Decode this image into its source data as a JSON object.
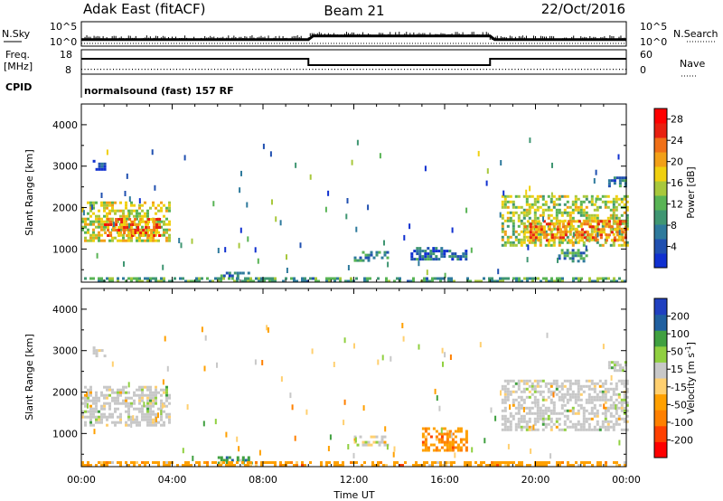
{
  "header": {
    "radar_title": "Adak East (fitACF)",
    "beam": "Beam 21",
    "date": "22/Oct/2016"
  },
  "top_panels": {
    "nsky_label": "N.Sky",
    "nsky_ticks": [
      "10^5",
      "10^0"
    ],
    "nsearch_label": "N.Search",
    "freq_label_1": "Freq.",
    "freq_label_2": "[MHz]",
    "freq_ticks": [
      "18",
      "8"
    ],
    "nave_ticks": [
      "60",
      "0"
    ],
    "nave_label": "Nave",
    "cpid_label": "CPID",
    "cpid_text": "normalsound (fast) 157 RF"
  },
  "colors": {
    "power_scale": [
      "#1030d0",
      "#2050b0",
      "#2e7a9c",
      "#3f9672",
      "#59b455",
      "#a8c83c",
      "#f0d010",
      "#f2a018",
      "#f07018",
      "#e82010",
      "#ff0000"
    ],
    "velocity_scale": [
      "#ff0000",
      "#ff4000",
      "#ff8000",
      "#ffa000",
      "#ffd070",
      "#c8c8c8",
      "#90d040",
      "#40a040",
      "#2060a0",
      "#2040c0"
    ]
  },
  "chart_data": [
    {
      "type": "line",
      "title": "N.Sky / N.Search",
      "x_ticks": [
        "00:00",
        "04:00",
        "08:00",
        "12:00",
        "16:00",
        "20:00",
        "00:00"
      ],
      "y_ticks": [
        "10^0",
        "10^5"
      ],
      "series": [
        {
          "name": "N.Sky",
          "x": [
            0,
            10,
            10.2,
            18,
            18.2,
            24
          ],
          "y": [
            0.4,
            0.4,
            0.9,
            0.9,
            0.4,
            0.4
          ]
        },
        {
          "name": "N.Search",
          "x": [
            0,
            24
          ],
          "y": [
            0.3,
            0.3
          ]
        }
      ]
    },
    {
      "type": "line",
      "title": "Freq. / Nave",
      "y_ticks_left": [
        "8",
        "18"
      ],
      "y_ticks_right": [
        "0",
        "60"
      ],
      "series": [
        {
          "name": "Freq. [MHz]",
          "x": [
            0,
            10,
            10,
            18,
            18,
            24
          ],
          "y": [
            14.3,
            14.3,
            11.7,
            11.7,
            14.3,
            14.3
          ]
        },
        {
          "name": "Nave",
          "x": [
            0,
            24
          ],
          "y": [
            12,
            12
          ]
        }
      ]
    },
    {
      "type": "heatmap",
      "xlabel": "",
      "ylabel": "Slant Range [km]",
      "x_ticks": [
        "00:00",
        "04:00",
        "08:00",
        "12:00",
        "16:00",
        "20:00",
        "00:00"
      ],
      "y_ticks": [
        "1000",
        "2000",
        "3000",
        "4000"
      ],
      "ylim": [
        200,
        4500
      ],
      "colorbar_label": "Power [dB]",
      "colorbar_ticks": [
        "4",
        "8",
        "12",
        "16",
        "20",
        "24",
        "28"
      ],
      "colorbar_range": [
        0,
        30
      ],
      "regions": [
        {
          "t0": 0.0,
          "t1": 3.9,
          "r0": 1200,
          "r1": 2150,
          "level": 0.55
        },
        {
          "t0": 1.0,
          "t1": 3.5,
          "r0": 1300,
          "r1": 1750,
          "level": 0.75
        },
        {
          "t0": 0.5,
          "t1": 1.0,
          "r0": 2900,
          "r1": 3150,
          "level": 0.15
        },
        {
          "t0": 6.0,
          "t1": 7.5,
          "r0": 300,
          "r1": 450,
          "level": 0.2
        },
        {
          "t0": 12.0,
          "t1": 13.5,
          "r0": 700,
          "r1": 950,
          "level": 0.25
        },
        {
          "t0": 14.5,
          "t1": 17.0,
          "r0": 750,
          "r1": 1050,
          "level": 0.2
        },
        {
          "t0": 18.5,
          "t1": 24.0,
          "r0": 1100,
          "r1": 2300,
          "level": 0.5
        },
        {
          "t0": 19.5,
          "t1": 24.0,
          "r0": 1200,
          "r1": 1700,
          "level": 0.72
        },
        {
          "t0": 21.0,
          "t1": 22.3,
          "r0": 700,
          "r1": 1000,
          "level": 0.3
        },
        {
          "t0": 23.2,
          "t1": 24.0,
          "r0": 2550,
          "r1": 2750,
          "level": 0.2
        },
        {
          "t0": 0.0,
          "t1": 24.0,
          "r0": 220,
          "r1": 320,
          "level": 0.35
        }
      ]
    },
    {
      "type": "heatmap",
      "xlabel": "Time UT",
      "ylabel": "Slant Range [km]",
      "x_ticks": [
        "00:00",
        "04:00",
        "08:00",
        "12:00",
        "16:00",
        "20:00",
        "00:00"
      ],
      "y_ticks": [
        "1000",
        "2000",
        "3000",
        "4000"
      ],
      "ylim": [
        200,
        4500
      ],
      "colorbar_label": "Velocity [m s",
      "colorbar_label_sup": "-1",
      "colorbar_label_end": "]",
      "colorbar_ticks": [
        "-200",
        "-100",
        "-50",
        "-15",
        "15",
        "50",
        "100",
        "200"
      ],
      "regions": [
        {
          "t0": 0.0,
          "t1": 3.9,
          "r0": 1200,
          "r1": 2150,
          "level": 0.55
        },
        {
          "t0": 0.5,
          "t1": 1.0,
          "r0": 2850,
          "r1": 3100,
          "level": 0.52
        },
        {
          "t0": 6.0,
          "t1": 7.5,
          "r0": 300,
          "r1": 450,
          "level": 0.75
        },
        {
          "t0": 12.0,
          "t1": 13.5,
          "r0": 700,
          "r1": 950,
          "level": 0.52
        },
        {
          "t0": 15.0,
          "t1": 17.0,
          "r0": 600,
          "r1": 1150,
          "level": 0.3
        },
        {
          "t0": 18.5,
          "t1": 24.0,
          "r0": 1100,
          "r1": 2300,
          "level": 0.55
        },
        {
          "t0": 23.2,
          "t1": 24.0,
          "r0": 2550,
          "r1": 2750,
          "level": 0.55
        },
        {
          "t0": 0.0,
          "t1": 24.0,
          "r0": 220,
          "r1": 330,
          "level": 0.35
        }
      ]
    }
  ]
}
